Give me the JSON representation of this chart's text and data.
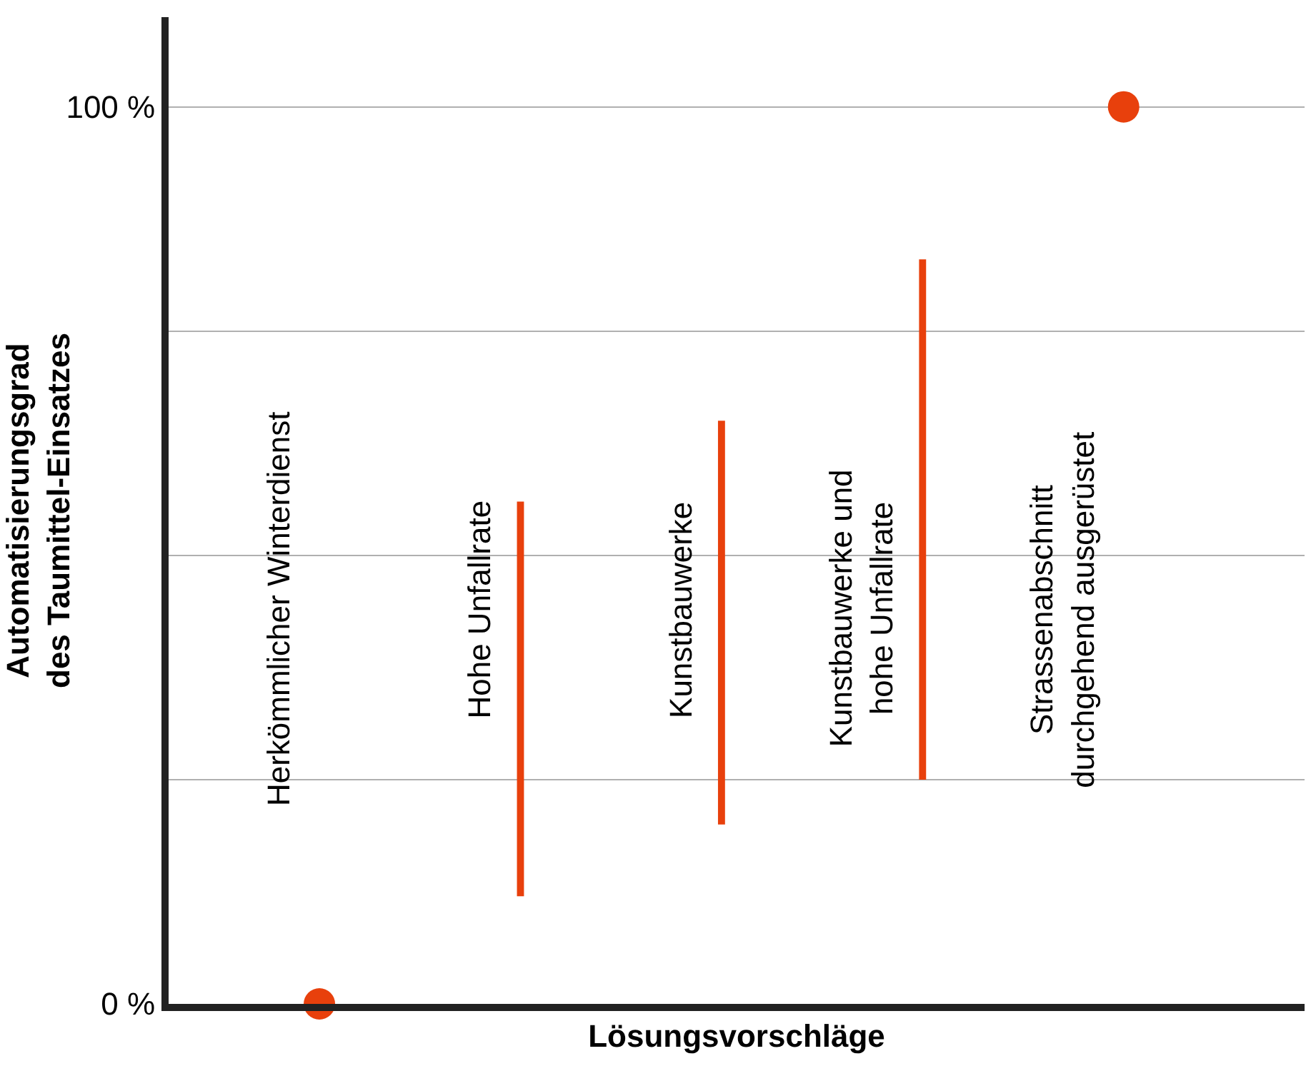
{
  "chart_data": {
    "type": "scatter",
    "xlabel": "Lösungsvorschläge",
    "ylabel": "Automatisierungsgrad\ndes Taumittel-Einsatzes",
    "categories": [
      "Herkömmlicher Winterdienst",
      "Hohe Unfallrate",
      "Kunstbauwerke",
      "Kunstbauwerke und\nhohe Unfallrate",
      "Strassenabschnitt\ndurchgehend ausgerüstet"
    ],
    "series": [
      {
        "color": "#e8400c",
        "values": [
          0,
          null,
          null,
          null,
          100
        ]
      },
      {
        "type": "bar",
        "color": "#e8400c",
        "base": [
          null,
          12,
          20,
          25,
          null
        ],
        "values": [
          null,
          44,
          45,
          58,
          null
        ]
      }
    ],
    "ylim": [
      0,
      110
    ],
    "yticks": [
      {
        "value": 0,
        "label": "0 %"
      },
      {
        "value": 25,
        "label": null
      },
      {
        "value": 50,
        "label": null
      },
      {
        "value": 75,
        "label": null
      },
      {
        "value": 100,
        "label": "100 %"
      }
    ],
    "grid": "y",
    "marker": "circle",
    "tick_labels": "y"
  }
}
